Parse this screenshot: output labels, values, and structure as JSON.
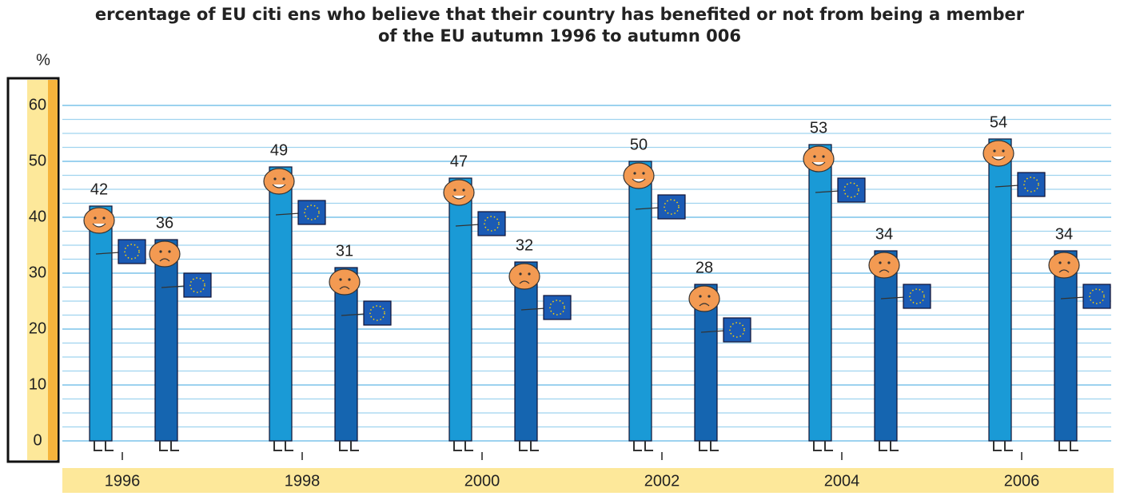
{
  "chart_data": {
    "type": "bar",
    "title": [
      "ercentage of EU citi ens who believe that their country has benefited or not from being a member",
      "of the EU  autumn 1996 to autumn   006"
    ],
    "y_label": "%",
    "categories": [
      "1996",
      "1998",
      "2000",
      "2002",
      "2004",
      "2006"
    ],
    "series": [
      {
        "color": "#1a9ad6",
        "values": [
          42,
          49,
          47,
          50,
          53,
          54
        ]
      },
      {
        "color": "#1565b0",
        "values": [
          36,
          31,
          32,
          28,
          34,
          34
        ]
      }
    ],
    "ylim": [
      0,
      60
    ],
    "yticks": [
      0,
      10,
      20,
      30,
      40,
      50,
      60
    ],
    "grid": true
  }
}
